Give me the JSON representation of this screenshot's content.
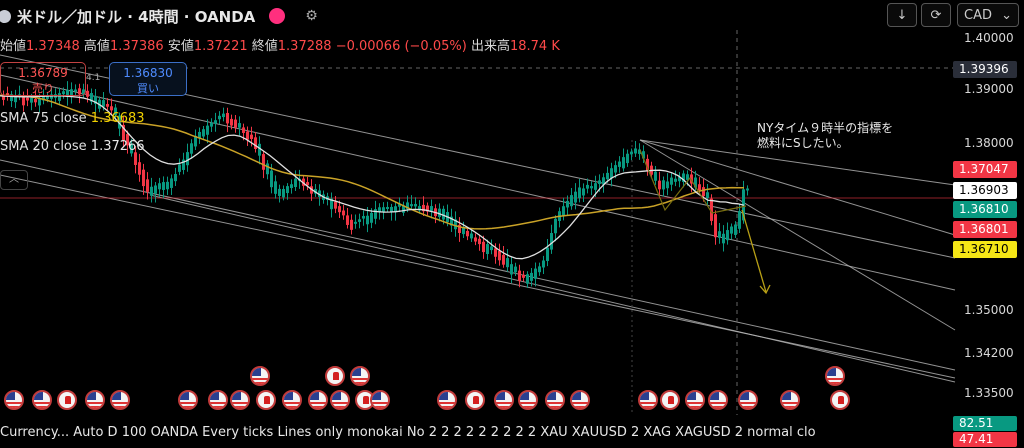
{
  "header": {
    "title": "米ドル／加ドル · 4時間 · OANDA",
    "ohlc": {
      "open_label": "始値",
      "open": "1.37348",
      "high_label": "高値",
      "high": "1.37386",
      "low_label": "安値",
      "low": "1.37221",
      "close_label": "終値",
      "close": "1.37288",
      "change": "−0.00066 (−0.05%)",
      "volume_label": "出来高",
      "volume": "18.74 K"
    }
  },
  "trade": {
    "sell_price": "1.36789",
    "sell_label": "売り",
    "spread": "4.1",
    "buy_price": "1.36830",
    "buy_label": "買い"
  },
  "indicators": {
    "sma75_label": "SMA 75 close",
    "sma75_value": "1.36683",
    "sma20_label": "SMA 20 close",
    "sma20_value": "1.37266"
  },
  "toolbar": {
    "currency": "CAD"
  },
  "price_axis": {
    "labels": [
      "1.40000",
      "1.39000",
      "1.38000",
      "1.35000",
      "1.34200",
      "1.33500"
    ],
    "crosshair_price": "1.39396",
    "tags": [
      {
        "value": "1.37047",
        "bg": "#f23645",
        "fg": "#ffffff"
      },
      {
        "value": "1.36903",
        "bg": "#ffffff",
        "fg": "#000000"
      },
      {
        "value": "1.36810",
        "bg": "#089981",
        "fg": "#ffffff"
      },
      {
        "value": "1.36801",
        "bg": "#f23645",
        "fg": "#ffffff"
      },
      {
        "value": "1.36710",
        "bg": "#f5e616",
        "fg": "#000000"
      }
    ]
  },
  "annotation": {
    "line1": "NYタイム９時半の指標を",
    "line2": "燃料にSしたい。"
  },
  "status_bar": {
    "text": "Currency... Auto D 100 OANDA Every ticks Lines only monokai No 2 2 2 2 2 2 2 2 2 XAU XAUUSD 2 XAG XAGUSD 2 normal clo",
    "value_green": "82.51",
    "value_red": "47.41"
  },
  "colors": {
    "up": "#089981",
    "down": "#f23645",
    "sma75": "#c9a227",
    "sma20": "#e0e0e0",
    "trendline": "#b8b8b8",
    "arrow": "#b8a016"
  },
  "icons": {
    "down_arrow": "down-arrow-icon",
    "refresh": "refresh-icon",
    "chevron": "chevron-down-icon"
  }
}
